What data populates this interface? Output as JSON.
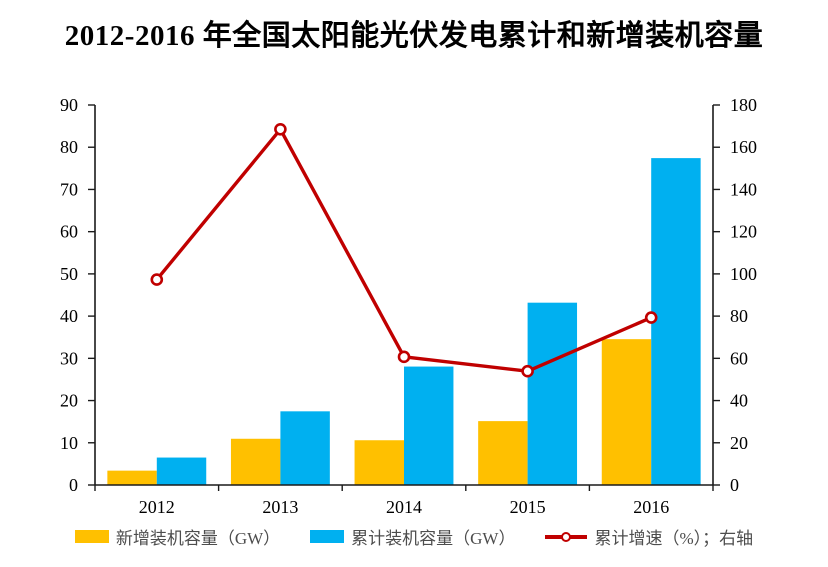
{
  "title": "2012-2016 年全国太阳能光伏发电累计和新增装机容量",
  "chart_data": {
    "type": "bar",
    "subtype": "grouped-bars-with-line-overlay",
    "categories": [
      "2012",
      "2013",
      "2014",
      "2015",
      "2016"
    ],
    "series": [
      {
        "name": "新增装机容量（GW）",
        "type": "bar",
        "axis": "left",
        "color": "#FFC000",
        "values": [
          3.4,
          10.95,
          10.6,
          15.13,
          34.54
        ]
      },
      {
        "name": "累计装机容量（GW）",
        "type": "bar",
        "axis": "left",
        "color": "#00B0F0",
        "values": [
          6.5,
          17.45,
          28.05,
          43.18,
          77.42
        ]
      },
      {
        "name": "累计增速（%）；右轴",
        "type": "line",
        "axis": "right",
        "color": "#C00000",
        "values": [
          97.3,
          168.5,
          60.7,
          53.9,
          79.3
        ]
      }
    ],
    "left_axis": {
      "min": 0,
      "max": 90,
      "step": 10,
      "ticks": [
        0,
        10,
        20,
        30,
        40,
        50,
        60,
        70,
        80,
        90
      ]
    },
    "right_axis": {
      "min": 0,
      "max": 180,
      "step": 20,
      "ticks": [
        0,
        20,
        40,
        60,
        80,
        100,
        120,
        140,
        160,
        180
      ]
    },
    "grid": false,
    "legend_position": "bottom",
    "axis_color": "#1a1a1a",
    "tick_label_color": "#000000",
    "marker_style": "open-circle"
  }
}
